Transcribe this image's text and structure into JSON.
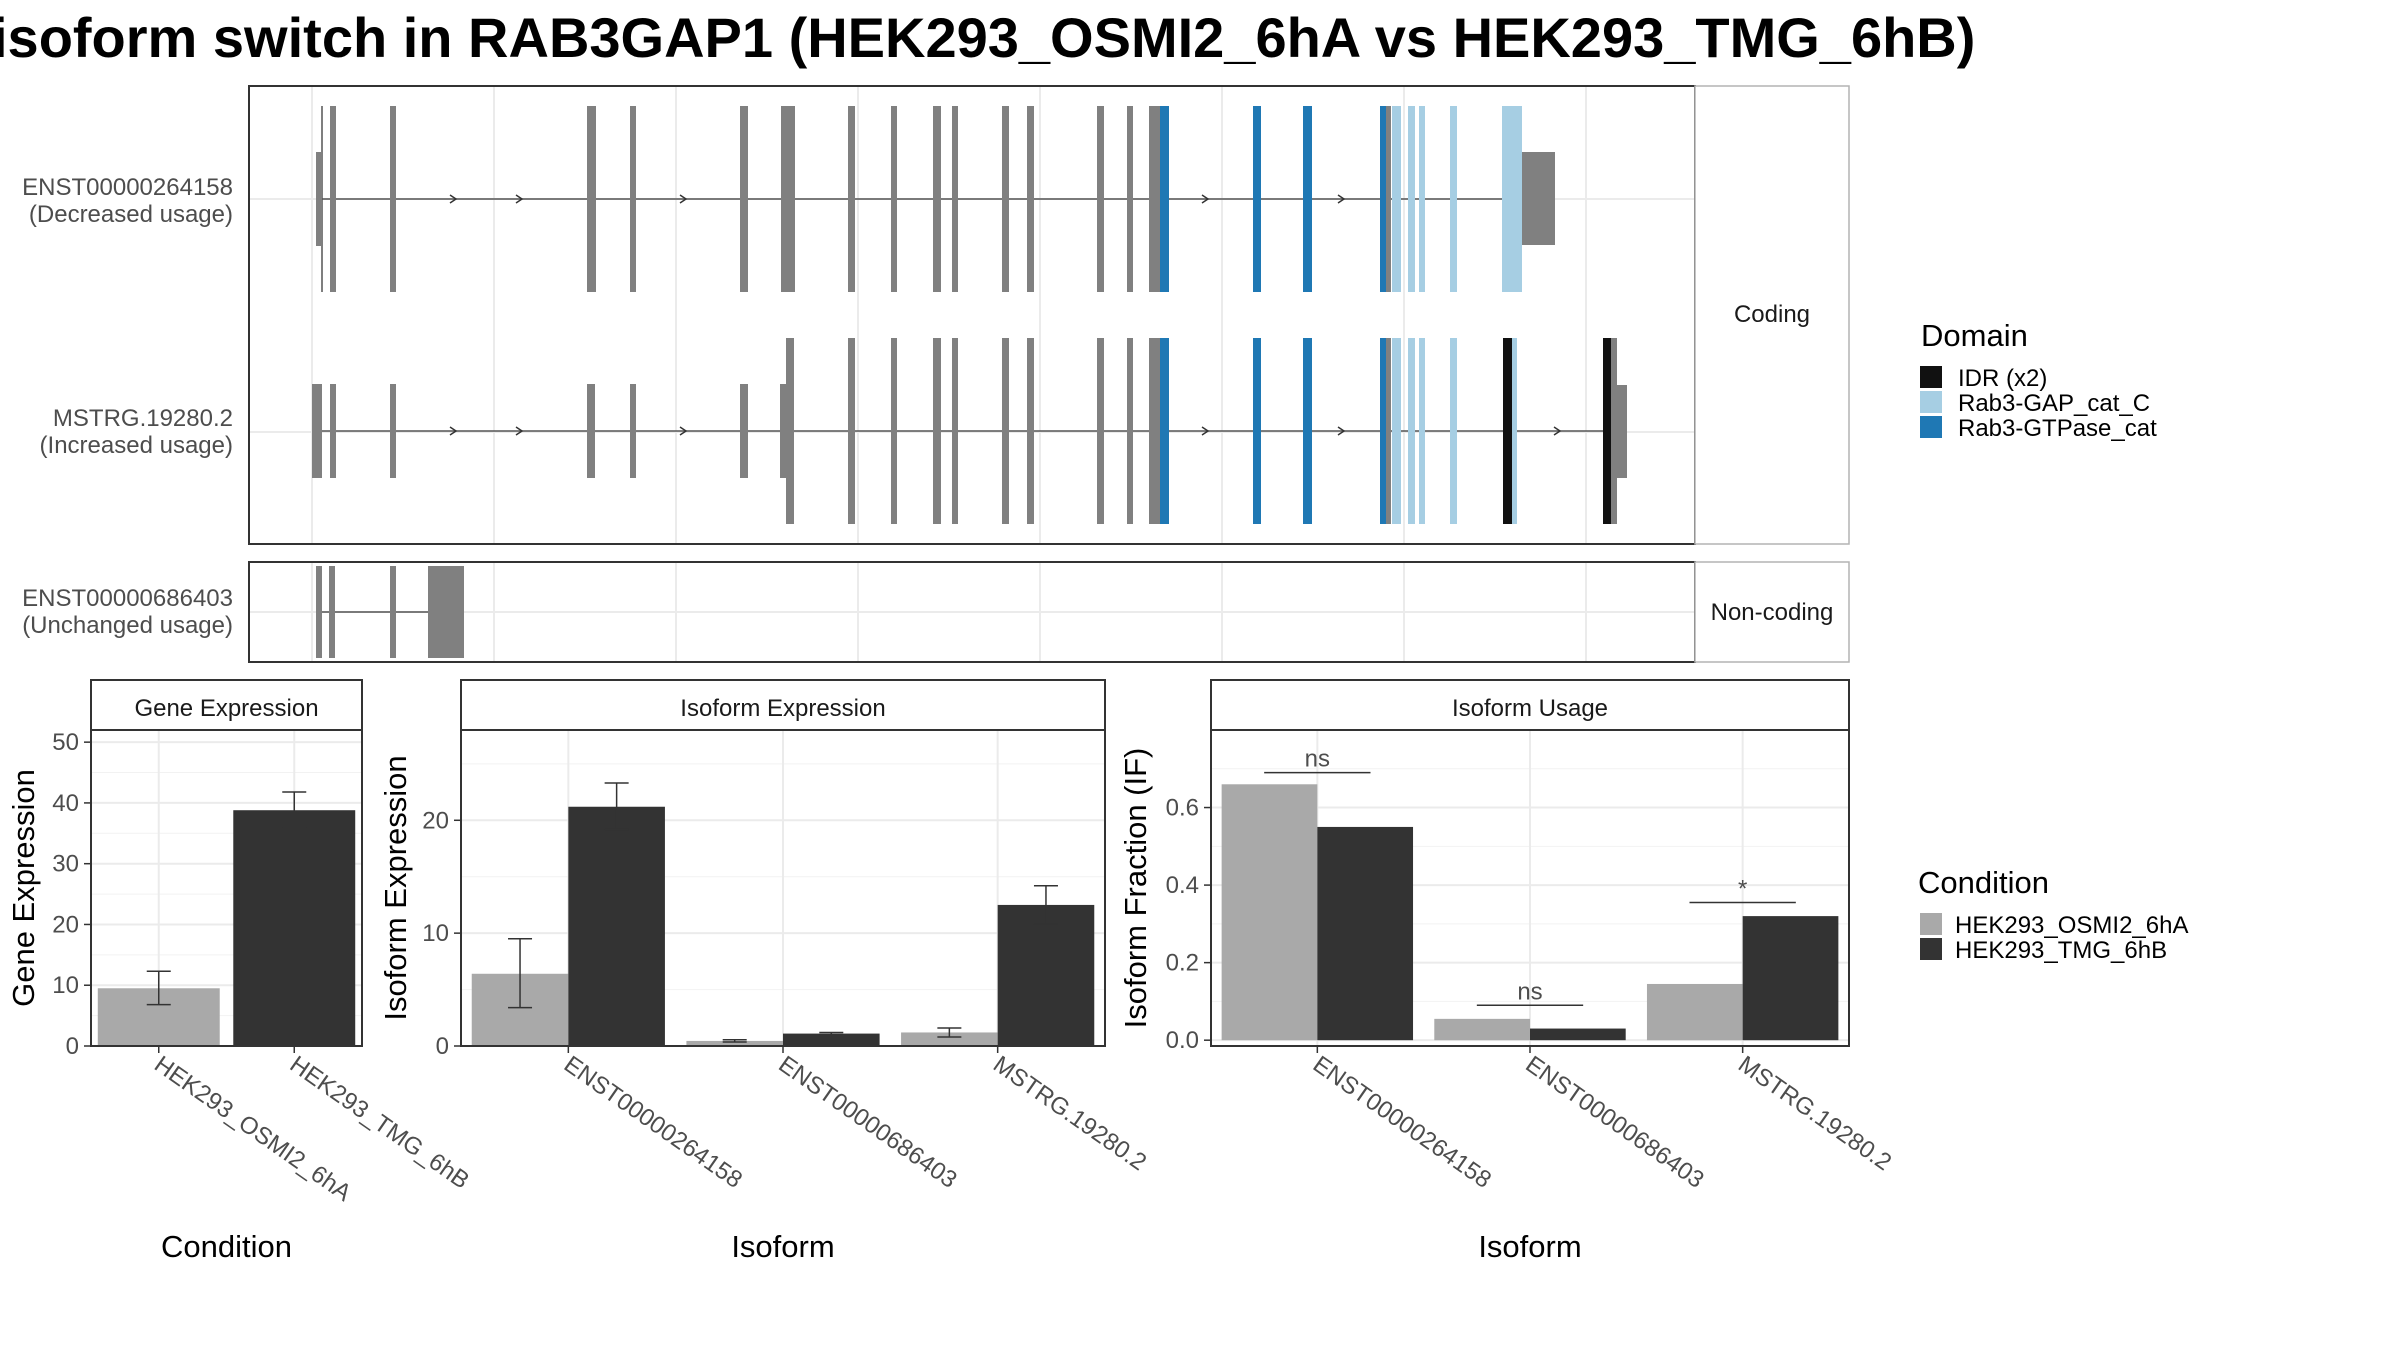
{
  "title": "isoform switch in RAB3GAP1 (HEK293_OSMI2_6hA vs HEK293_TMG_6hB)",
  "colors": {
    "condition_a": "#a9a9a9",
    "condition_b": "#333333",
    "exon": "#808080",
    "idr": "#111111",
    "rab3gap_cat_c": "#a6cee3",
    "rab3_gtpase_cat": "#1f78b4"
  },
  "structure": {
    "facets": [
      "Coding",
      "Non-coding"
    ],
    "transcripts": [
      {
        "id": "ENST00000264158",
        "usage": "(Decreased usage)",
        "facet": "Coding"
      },
      {
        "id": "MSTRG.19280.2",
        "usage": "(Increased usage)",
        "facet": "Coding"
      },
      {
        "id": "ENST00000686403",
        "usage": "(Unchanged usage)",
        "facet": "Non-coding"
      }
    ]
  },
  "domain_legend": {
    "title": "Domain",
    "items": [
      {
        "label": "IDR (x2)",
        "color": "#111111"
      },
      {
        "label": "Rab3-GAP_cat_C",
        "color": "#a6cee3"
      },
      {
        "label": "Rab3-GTPase_cat",
        "color": "#1f78b4"
      }
    ]
  },
  "condition_legend": {
    "title": "Condition",
    "items": [
      {
        "label": "HEK293_OSMI2_6hA",
        "color": "#a9a9a9"
      },
      {
        "label": "HEK293_TMG_6hB",
        "color": "#333333"
      }
    ]
  },
  "chart_data": [
    {
      "type": "bar",
      "title": "Gene Expression",
      "xlabel": "Condition",
      "ylabel": "Gene Expression",
      "categories": [
        "HEK293_OSMI2_6hA",
        "HEK293_TMG_6hB"
      ],
      "values": [
        9.5,
        38.8
      ],
      "error_low": [
        6.8,
        36.0
      ],
      "error_high": [
        12.3,
        41.8
      ],
      "ylim": [
        0,
        52
      ],
      "yticks": [
        0,
        10,
        20,
        30,
        40,
        50
      ],
      "grid": true
    },
    {
      "type": "bar",
      "title": "Isoform Expression",
      "xlabel": "Isoform",
      "ylabel": "Isoform Expression",
      "categories": [
        "ENST00000264158",
        "ENST00000686403",
        "MSTRG.19280.2"
      ],
      "series": [
        {
          "name": "HEK293_OSMI2_6hA",
          "values": [
            6.4,
            0.45,
            1.2
          ],
          "error_low": [
            3.4,
            0.35,
            0.8
          ],
          "error_high": [
            9.5,
            0.55,
            1.6
          ]
        },
        {
          "name": "HEK293_TMG_6hB",
          "values": [
            21.2,
            1.1,
            12.5
          ],
          "error_low": [
            19.2,
            1.0,
            10.8
          ],
          "error_high": [
            23.3,
            1.2,
            14.2
          ]
        }
      ],
      "ylim": [
        0,
        28
      ],
      "yticks": [
        0,
        10,
        20
      ],
      "grid": true
    },
    {
      "type": "bar",
      "title": "Isoform Usage",
      "xlabel": "Isoform",
      "ylabel": "Isoform Fraction (IF)",
      "categories": [
        "ENST00000264158",
        "ENST00000686403",
        "MSTRG.19280.2"
      ],
      "series": [
        {
          "name": "HEK293_OSMI2_6hA",
          "values": [
            0.66,
            0.055,
            0.145
          ]
        },
        {
          "name": "HEK293_TMG_6hB",
          "values": [
            0.55,
            0.03,
            0.32
          ]
        }
      ],
      "significance": [
        "ns",
        "ns",
        "*"
      ],
      "significance_y": [
        0.69,
        0.09,
        0.355
      ],
      "ylim": [
        -0.015,
        0.8
      ],
      "yticks": [
        0.0,
        0.2,
        0.4,
        0.6
      ],
      "grid": true
    }
  ]
}
